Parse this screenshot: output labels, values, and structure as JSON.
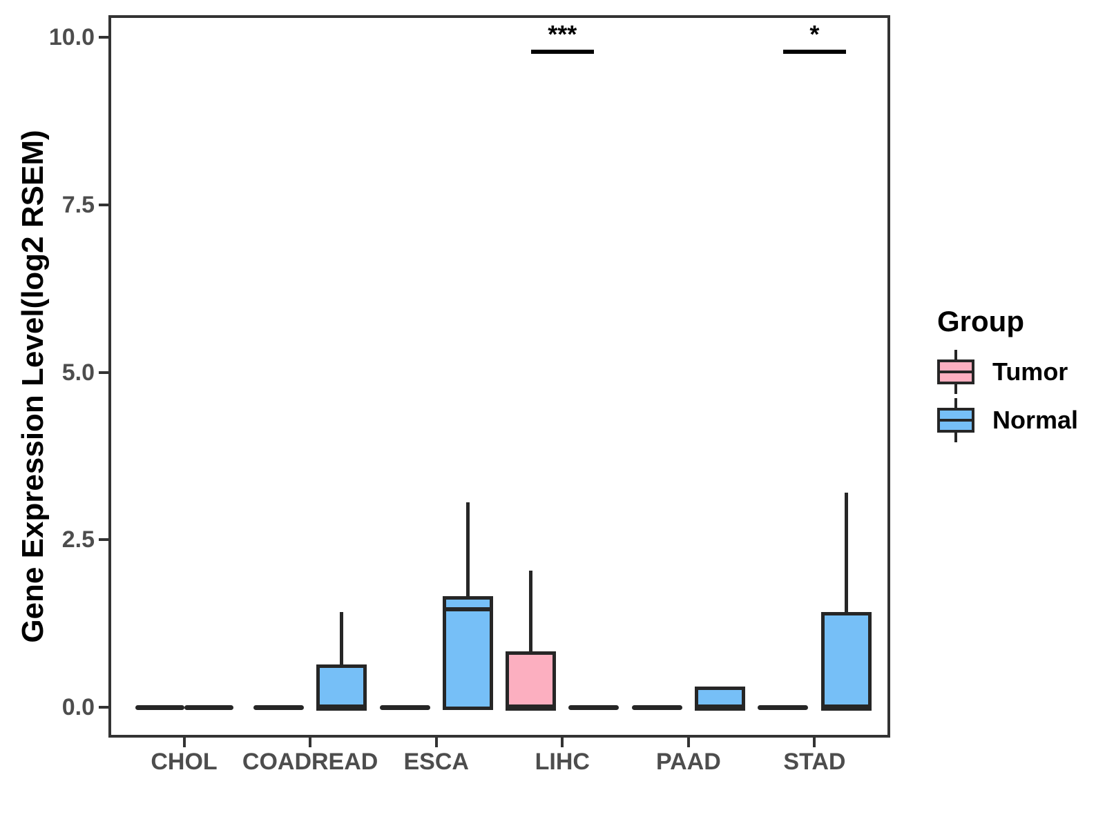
{
  "chart_data": {
    "type": "boxplot",
    "title": "",
    "xlabel": "",
    "ylabel": "Gene Expression Level(log2 RSEM)",
    "ylim": [
      -0.43,
      10.35
    ],
    "yticks": [
      0.0,
      2.5,
      5.0,
      7.5,
      10.0
    ],
    "ytick_labels": [
      "0.0",
      "2.5",
      "5.0",
      "7.5",
      "10.0"
    ],
    "categories": [
      "CHOL",
      "COADREAD",
      "ESCA",
      "LIHC",
      "PAAD",
      "STAD"
    ],
    "grid": false,
    "legend_position": "right",
    "legend_title": "Group",
    "groups": [
      {
        "name": "Tumor",
        "fill": "#FCAFC0"
      },
      {
        "name": "Normal",
        "fill": "#76BFF7"
      }
    ],
    "colors": {
      "box_border": "#262626",
      "panel_border": "#333333",
      "tick_label": "#4D4D4D",
      "annotation": "#000000"
    },
    "series": [
      {
        "name": "Tumor",
        "boxes": [
          {
            "category": "CHOL",
            "min": 0,
            "q1": 0,
            "median": 0,
            "q3": 0,
            "max": 0
          },
          {
            "category": "COADREAD",
            "min": 0,
            "q1": 0,
            "median": 0,
            "q3": 0,
            "max": 0
          },
          {
            "category": "ESCA",
            "min": 0,
            "q1": 0,
            "median": 0,
            "q3": 0,
            "max": 0
          },
          {
            "category": "LIHC",
            "min": 0,
            "q1": 0,
            "median": 0,
            "q3": 0.83,
            "max": 2.04
          },
          {
            "category": "PAAD",
            "min": 0,
            "q1": 0,
            "median": 0,
            "q3": 0,
            "max": 0
          },
          {
            "category": "STAD",
            "min": 0,
            "q1": 0,
            "median": 0,
            "q3": 0,
            "max": 0
          }
        ]
      },
      {
        "name": "Normal",
        "boxes": [
          {
            "category": "CHOL",
            "min": 0,
            "q1": 0,
            "median": 0,
            "q3": 0,
            "max": 0
          },
          {
            "category": "COADREAD",
            "min": 0,
            "q1": 0,
            "median": 0,
            "q3": 0.64,
            "max": 1.42
          },
          {
            "category": "ESCA",
            "min": 0,
            "q1": 0,
            "median": 1.46,
            "q3": 1.66,
            "max": 3.06
          },
          {
            "category": "LIHC",
            "min": 0,
            "q1": 0,
            "median": 0,
            "q3": 0,
            "max": 0
          },
          {
            "category": "PAAD",
            "min": 0,
            "q1": 0,
            "median": 0,
            "q3": 0.31,
            "max": 0.31
          },
          {
            "category": "STAD",
            "min": 0,
            "q1": 0,
            "median": 0,
            "q3": 1.42,
            "max": 3.2
          }
        ]
      }
    ],
    "annotations": [
      {
        "category": "LIHC",
        "label": "***",
        "y": 9.78
      },
      {
        "category": "STAD",
        "label": "*",
        "y": 9.78
      }
    ]
  }
}
